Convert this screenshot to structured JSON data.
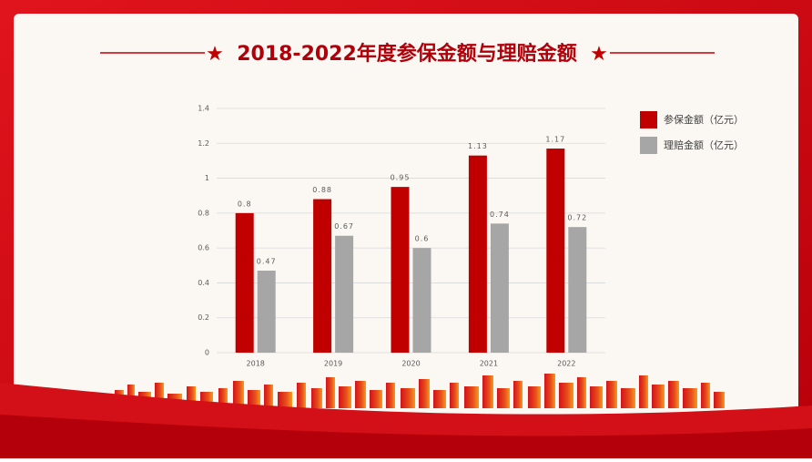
{
  "chart_data": {
    "type": "bar",
    "title": "2018-2022年度参保金额与理赔金额",
    "categories": [
      "2018",
      "2019",
      "2020",
      "2021",
      "2022"
    ],
    "series": [
      {
        "name": "参保金额（亿元）",
        "color": "#c00000",
        "values": [
          0.8,
          0.88,
          0.95,
          1.13,
          1.17
        ]
      },
      {
        "name": "理赔金额（亿元）",
        "color": "#a6a6a6",
        "values": [
          0.47,
          0.67,
          0.6,
          0.74,
          0.72
        ]
      }
    ],
    "ylim": [
      0,
      1.4
    ],
    "yticks": [
      0,
      0.2,
      0.4,
      0.6,
      0.8,
      1,
      1.2,
      1.4
    ],
    "grid": true,
    "legend": "right"
  }
}
